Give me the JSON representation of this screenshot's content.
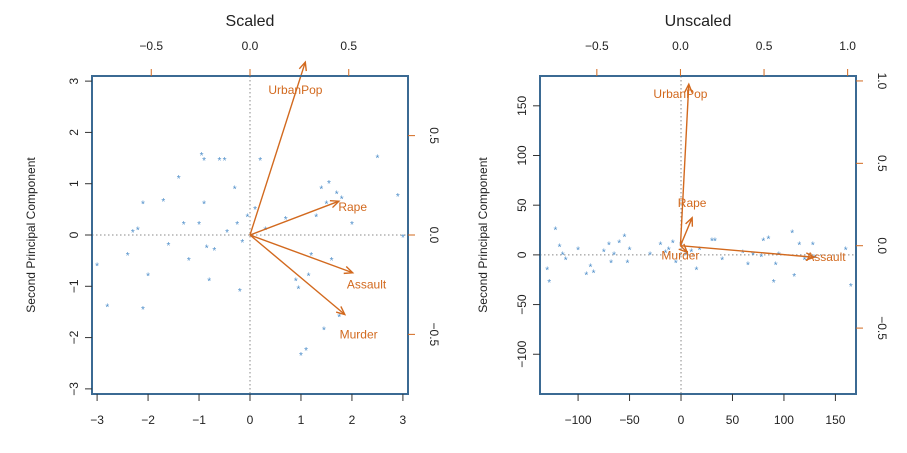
{
  "colors": {
    "points": "#4f8fca",
    "loadings": "#d2691e",
    "frame": "#3b6a93",
    "text": "#222222"
  },
  "chart_data": [
    {
      "type": "scatter",
      "title": "Scaled",
      "xlabel": "",
      "ylabel": "Second Principal Component",
      "xlim": [
        -3.1,
        3.1
      ],
      "ylim": [
        -3.1,
        3.1
      ],
      "xticks": [
        -3,
        -2,
        -1,
        0,
        1,
        2,
        3
      ],
      "xtick_labels": [
        "−3",
        "−2",
        "−1",
        "0",
        "1",
        "2",
        "3"
      ],
      "yticks": [
        -3,
        -2,
        -1,
        0,
        1,
        2,
        3
      ],
      "ytick_labels": [
        "−3",
        "−2",
        "−1",
        "0",
        "1",
        "2",
        "3"
      ],
      "top_axis": {
        "lim": [
          -0.8,
          0.8
        ],
        "ticks": [
          -0.5,
          0.0,
          0.5
        ],
        "tick_labels": [
          "−0.5",
          "0.0",
          "0.5"
        ]
      },
      "right_axis": {
        "lim": [
          -0.8,
          0.8
        ],
        "ticks": [
          -0.5,
          0.0,
          0.5
        ],
        "tick_labels": [
          "−0.5",
          "0.0",
          "0.5"
        ]
      },
      "points": [
        [
          -3.0,
          -0.6
        ],
        [
          -2.8,
          -1.4
        ],
        [
          -2.4,
          -0.4
        ],
        [
          -2.3,
          0.05
        ],
        [
          -2.2,
          0.1
        ],
        [
          -2.1,
          0.6
        ],
        [
          -2.1,
          -1.45
        ],
        [
          -2.0,
          -0.8
        ],
        [
          -1.7,
          0.65
        ],
        [
          -1.6,
          -0.2
        ],
        [
          -1.4,
          1.1
        ],
        [
          -1.3,
          0.2
        ],
        [
          -1.2,
          -0.5
        ],
        [
          -1.0,
          0.2
        ],
        [
          -0.95,
          1.55
        ],
        [
          -0.9,
          0.6
        ],
        [
          -0.9,
          1.45
        ],
        [
          -0.85,
          -0.25
        ],
        [
          -0.8,
          -0.9
        ],
        [
          -0.7,
          -0.3
        ],
        [
          -0.6,
          1.45
        ],
        [
          -0.5,
          1.45
        ],
        [
          -0.45,
          0.05
        ],
        [
          -0.3,
          0.9
        ],
        [
          -0.25,
          0.2
        ],
        [
          -0.2,
          -1.1
        ],
        [
          -0.15,
          -0.15
        ],
        [
          -0.05,
          0.35
        ],
        [
          0.1,
          0.5
        ],
        [
          0.2,
          1.45
        ],
        [
          0.3,
          0.1
        ],
        [
          0.7,
          0.3
        ],
        [
          0.9,
          -0.9
        ],
        [
          0.95,
          -1.05
        ],
        [
          1.0,
          -2.35
        ],
        [
          1.1,
          -2.25
        ],
        [
          1.15,
          -0.8
        ],
        [
          1.2,
          -0.4
        ],
        [
          1.3,
          0.35
        ],
        [
          1.4,
          0.9
        ],
        [
          1.45,
          -1.85
        ],
        [
          1.5,
          0.6
        ],
        [
          1.55,
          1.0
        ],
        [
          1.6,
          -0.5
        ],
        [
          1.7,
          0.8
        ],
        [
          1.75,
          -1.6
        ],
        [
          1.8,
          0.7
        ],
        [
          2.0,
          0.2
        ],
        [
          2.5,
          1.5
        ],
        [
          2.9,
          0.75
        ],
        [
          3.0,
          -0.05
        ]
      ],
      "loadings": [
        {
          "name": "UrbanPop",
          "x": 0.28,
          "y": 0.87,
          "label_x": 0.23,
          "label_y": 0.73
        },
        {
          "name": "Rape",
          "x": 0.45,
          "y": 0.17,
          "label_x": 0.52,
          "label_y": 0.14
        },
        {
          "name": "Assault",
          "x": 0.52,
          "y": -0.19,
          "label_x": 0.59,
          "label_y": -0.25
        },
        {
          "name": "Murder",
          "x": 0.48,
          "y": -0.4,
          "label_x": 0.55,
          "label_y": -0.5
        }
      ]
    },
    {
      "type": "scatter",
      "title": "Unscaled",
      "xlabel": "",
      "ylabel": "Second Principal Component",
      "xlim": [
        -137,
        170
      ],
      "ylim": [
        -140,
        180
      ],
      "xticks": [
        -100,
        -50,
        0,
        50,
        100,
        150
      ],
      "xtick_labels": [
        "−100",
        "−50",
        "0",
        "50",
        "100",
        "150"
      ],
      "yticks": [
        -100,
        -50,
        0,
        50,
        100,
        150
      ],
      "ytick_labels": [
        "−100",
        "−50",
        "0",
        "50",
        "100",
        "150"
      ],
      "top_axis": {
        "lim": [
          -0.84,
          1.05
        ],
        "ticks": [
          -0.5,
          0.0,
          0.5,
          1.0
        ],
        "tick_labels": [
          "−0.5",
          "0.0",
          "0.5",
          "1.0"
        ]
      },
      "right_axis": {
        "lim": [
          -0.9,
          1.03
        ],
        "ticks": [
          -0.5,
          0.0,
          0.5,
          1.0
        ],
        "tick_labels": [
          "−0.5",
          "0.0",
          "0.5",
          "1.0"
        ]
      },
      "points": [
        [
          -130,
          -15
        ],
        [
          -128,
          -28
        ],
        [
          -122,
          25
        ],
        [
          -118,
          8
        ],
        [
          -115,
          0
        ],
        [
          -112,
          -5
        ],
        [
          -100,
          5
        ],
        [
          -92,
          -20
        ],
        [
          -88,
          -12
        ],
        [
          -85,
          -18
        ],
        [
          -75,
          3
        ],
        [
          -70,
          10
        ],
        [
          -68,
          -8
        ],
        [
          -65,
          0
        ],
        [
          -60,
          12
        ],
        [
          -55,
          18
        ],
        [
          -52,
          -8
        ],
        [
          -50,
          5
        ],
        [
          -30,
          0
        ],
        [
          -20,
          10
        ],
        [
          -15,
          2
        ],
        [
          -12,
          5
        ],
        [
          -8,
          12
        ],
        [
          -5,
          -8
        ],
        [
          0,
          10
        ],
        [
          5,
          0
        ],
        [
          10,
          3
        ],
        [
          15,
          -15
        ],
        [
          18,
          5
        ],
        [
          30,
          14
        ],
        [
          33,
          14
        ],
        [
          40,
          -5
        ],
        [
          60,
          2
        ],
        [
          65,
          -10
        ],
        [
          70,
          0
        ],
        [
          78,
          -2
        ],
        [
          80,
          14
        ],
        [
          85,
          16
        ],
        [
          90,
          -28
        ],
        [
          92,
          -10
        ],
        [
          95,
          0
        ],
        [
          108,
          22
        ],
        [
          110,
          -22
        ],
        [
          115,
          10
        ],
        [
          120,
          -5
        ],
        [
          128,
          10
        ],
        [
          130,
          -3
        ],
        [
          160,
          5
        ],
        [
          165,
          -32
        ]
      ],
      "loadings": [
        {
          "name": "UrbanPop",
          "x": 0.05,
          "y": 0.98,
          "label_x": 0.0,
          "label_y": 0.92
        },
        {
          "name": "Rape",
          "x": 0.07,
          "y": 0.17,
          "label_x": 0.07,
          "label_y": 0.26
        },
        {
          "name": "Murder",
          "x": 0.04,
          "y": -0.04,
          "label_x": 0.0,
          "label_y": -0.06
        },
        {
          "name": "Assault",
          "x": 0.8,
          "y": -0.07,
          "label_x": 0.87,
          "label_y": -0.07
        }
      ]
    }
  ]
}
